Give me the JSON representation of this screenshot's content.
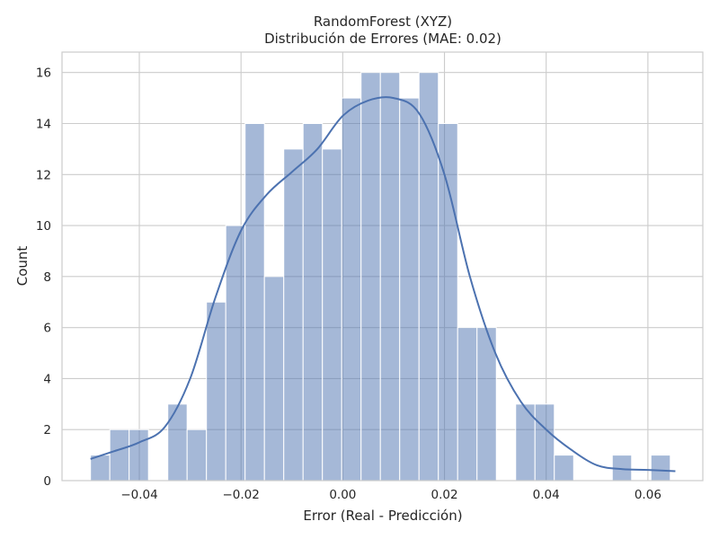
{
  "chart_data": {
    "type": "bar",
    "title": "RandomForest (XYZ)",
    "subtitle": "Distribución de Errores (MAE: 0.02)",
    "xlabel": "Error (Real - Predicción)",
    "ylabel": "Count",
    "xlim": [
      -0.0552,
      0.0708
    ],
    "ylim": [
      0,
      16.8
    ],
    "xticks": [
      -0.04,
      -0.02,
      0.0,
      0.02,
      0.04,
      0.06
    ],
    "xtick_labels": [
      "−0.04",
      "−0.02",
      "0.00",
      "0.02",
      "0.04",
      "0.06"
    ],
    "yticks": [
      0,
      2,
      4,
      6,
      8,
      10,
      12,
      14,
      16
    ],
    "ytick_labels": [
      "0",
      "2",
      "4",
      "6",
      "8",
      "10",
      "12",
      "14",
      "16"
    ],
    "grid": true,
    "bin_start": -0.0496,
    "bin_width": 0.0038,
    "counts": [
      1,
      2,
      2,
      0,
      3,
      2,
      7,
      10,
      14,
      8,
      13,
      14,
      13,
      15,
      16,
      16,
      15,
      16,
      14,
      6,
      6,
      0,
      3,
      3,
      1,
      0,
      0,
      1,
      0,
      1
    ],
    "bar_color": "#4c72b0",
    "kde_line_color": "#4c72b0",
    "kde": {
      "x": [
        -0.0496,
        -0.045,
        -0.04,
        -0.035,
        -0.03,
        -0.025,
        -0.02,
        -0.015,
        -0.01,
        -0.005,
        0.0,
        0.005,
        0.01,
        0.015,
        0.02,
        0.025,
        0.03,
        0.035,
        0.04,
        0.045,
        0.05,
        0.055,
        0.06,
        0.0654
      ],
      "y": [
        0.85,
        1.15,
        1.5,
        2.1,
        4.0,
        7.2,
        9.8,
        11.2,
        12.1,
        13.0,
        14.3,
        14.9,
        15.0,
        14.4,
        12.0,
        8.0,
        5.0,
        3.1,
        2.0,
        1.2,
        0.6,
        0.45,
        0.42,
        0.37
      ]
    }
  }
}
